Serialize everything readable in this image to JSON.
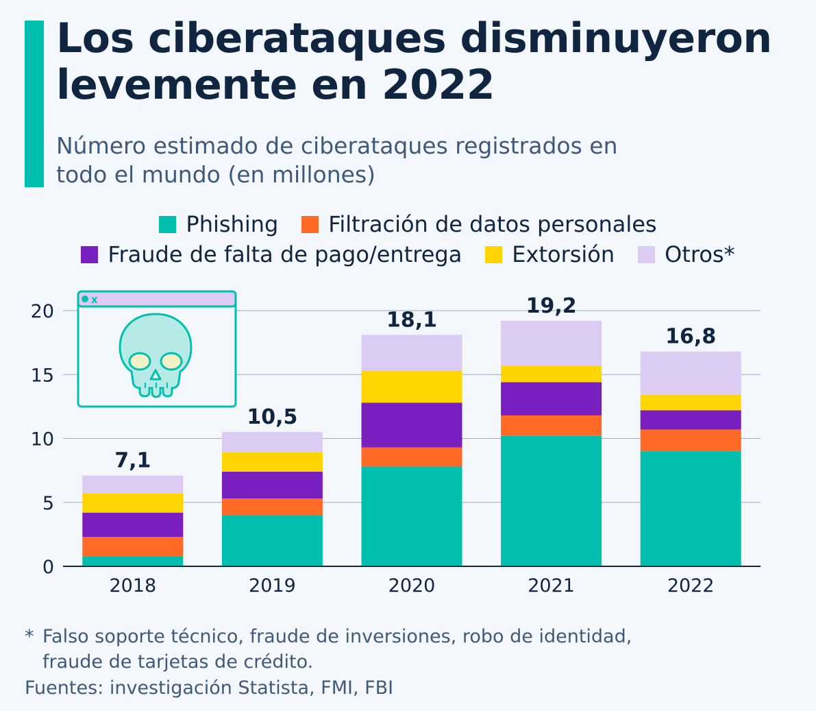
{
  "header": {
    "title": "Los ciberataques disminuyeron levemente en 2022",
    "subtitle": "Número estimado de ciberataques registrados en todo el mundo (en millones)"
  },
  "colors": {
    "accent": "#00bfae",
    "phishing": "#00bfae",
    "filtracion": "#ff6a26",
    "fraude": "#7a1fbf",
    "extorsion": "#ffd500",
    "otros": "#dccbf2"
  },
  "illustration": {
    "icon": "skull-browser-window-icon",
    "window_mark": "x"
  },
  "chart_data": {
    "type": "bar",
    "stacked": true,
    "categories": [
      "2018",
      "2019",
      "2020",
      "2021",
      "2022"
    ],
    "series": [
      {
        "name": "Phishing",
        "values": [
          0.8,
          4.0,
          7.8,
          10.2,
          9.0
        ]
      },
      {
        "name": "Filtración de datos personales",
        "values": [
          1.5,
          1.3,
          1.5,
          1.6,
          1.7
        ]
      },
      {
        "name": "Fraude de falta de pago/entrega",
        "values": [
          1.9,
          2.1,
          3.5,
          2.6,
          1.5
        ]
      },
      {
        "name": "Extorsión",
        "values": [
          1.5,
          1.5,
          2.5,
          1.3,
          1.2
        ]
      },
      {
        "name": "Otros*",
        "values": [
          1.4,
          1.6,
          2.8,
          3.5,
          3.4
        ]
      }
    ],
    "totals": [
      "7,1",
      "10,5",
      "18,1",
      "19,2",
      "16,8"
    ],
    "yticks": [
      "0",
      "5",
      "10",
      "15",
      "20"
    ],
    "ylim": [
      0,
      20
    ],
    "grid": true,
    "legend_position": "top"
  },
  "footnote": {
    "marker": "*",
    "lines": [
      "Falso soporte técnico, fraude de inversiones, robo de identidad,",
      "fraude de tarjetas de crédito."
    ]
  },
  "source": "Fuentes: investigación Statista, FMI, FBI"
}
